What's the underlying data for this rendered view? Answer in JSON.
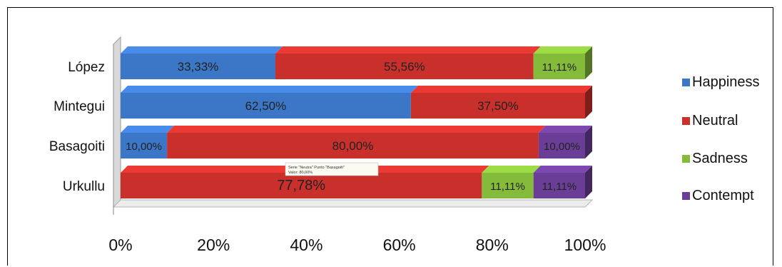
{
  "chart_data": {
    "type": "bar",
    "subtype": "stacked-100-percent-horizontal-3d",
    "categories": [
      "López",
      "Mintegui",
      "Basagoiti",
      "Urkullu"
    ],
    "series": [
      {
        "name": "Happiness",
        "color": "#3c76c7",
        "values": [
          33.33,
          62.5,
          10.0,
          0
        ]
      },
      {
        "name": "Neutral",
        "color": "#c9302c",
        "values": [
          55.56,
          37.5,
          80.0,
          77.78
        ]
      },
      {
        "name": "Sadness",
        "color": "#84bb3a",
        "values": [
          11.11,
          0,
          0,
          11.11
        ]
      },
      {
        "name": "Contempt",
        "color": "#6a3e96",
        "values": [
          0,
          0,
          10.0,
          11.11
        ]
      }
    ],
    "data_labels": [
      [
        "33,33%",
        "55,56%",
        "11,11%",
        ""
      ],
      [
        "62,50%",
        "37,50%",
        "",
        ""
      ],
      [
        "10,00%",
        "80,00%",
        "",
        "10,00%"
      ],
      [
        "",
        "77,78%",
        "11,11%",
        "11,11%"
      ]
    ],
    "x_ticks": [
      "0%",
      "20%",
      "40%",
      "60%",
      "80%",
      "100%"
    ],
    "xlim": [
      0,
      100
    ],
    "legend_position": "right",
    "tooltip": {
      "line1": "Serie \"Neutra\" Punto \"Basagoiti\"",
      "line2": "Valor: 80,00%"
    }
  }
}
